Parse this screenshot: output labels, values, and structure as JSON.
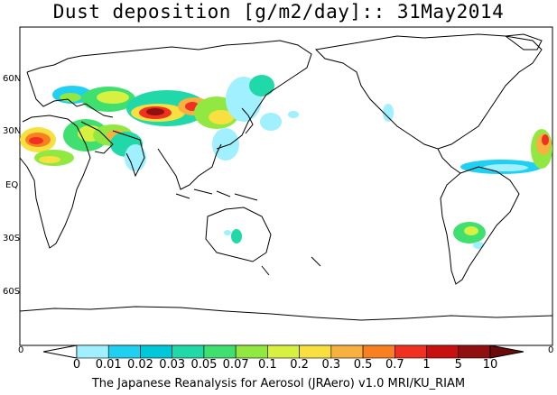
{
  "title": "Dust deposition [g/m2/day]:: 31May2014",
  "lat_labels": [
    "60N",
    "30N",
    "EQ",
    "30S",
    "60S"
  ],
  "edge_labels": {
    "left": "0",
    "right": "0"
  },
  "colorbar": {
    "levels": [
      "0",
      "0.01",
      "0.02",
      "0.03",
      "0.05",
      "0.07",
      "0.1",
      "0.2",
      "0.3",
      "0.5",
      "0.7",
      "1",
      "5",
      "10"
    ],
    "colors": [
      "#ffffff",
      "#a0f0ff",
      "#20d0f0",
      "#00c8d8",
      "#20d8a8",
      "#40e070",
      "#90e840",
      "#d8f040",
      "#f8e040",
      "#f8b040",
      "#f88020",
      "#f03020",
      "#c81010",
      "#901010",
      "#6a0a0a"
    ]
  },
  "footer": "The Japanese Reanalysis for Aerosol (JRAero) v1.0 MRI/KU_RIAM",
  "colors": {
    "land_outline": "#000000",
    "frame": "#000000"
  }
}
